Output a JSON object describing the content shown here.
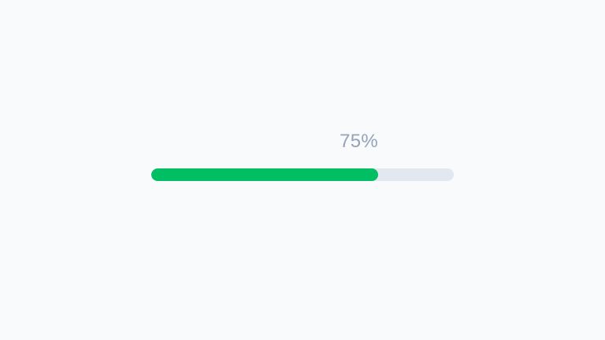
{
  "progress": {
    "value": 75,
    "label": "75%",
    "colors": {
      "fill": "#00bf63",
      "track": "#e2e8f0",
      "label": "#94a3b8"
    }
  }
}
